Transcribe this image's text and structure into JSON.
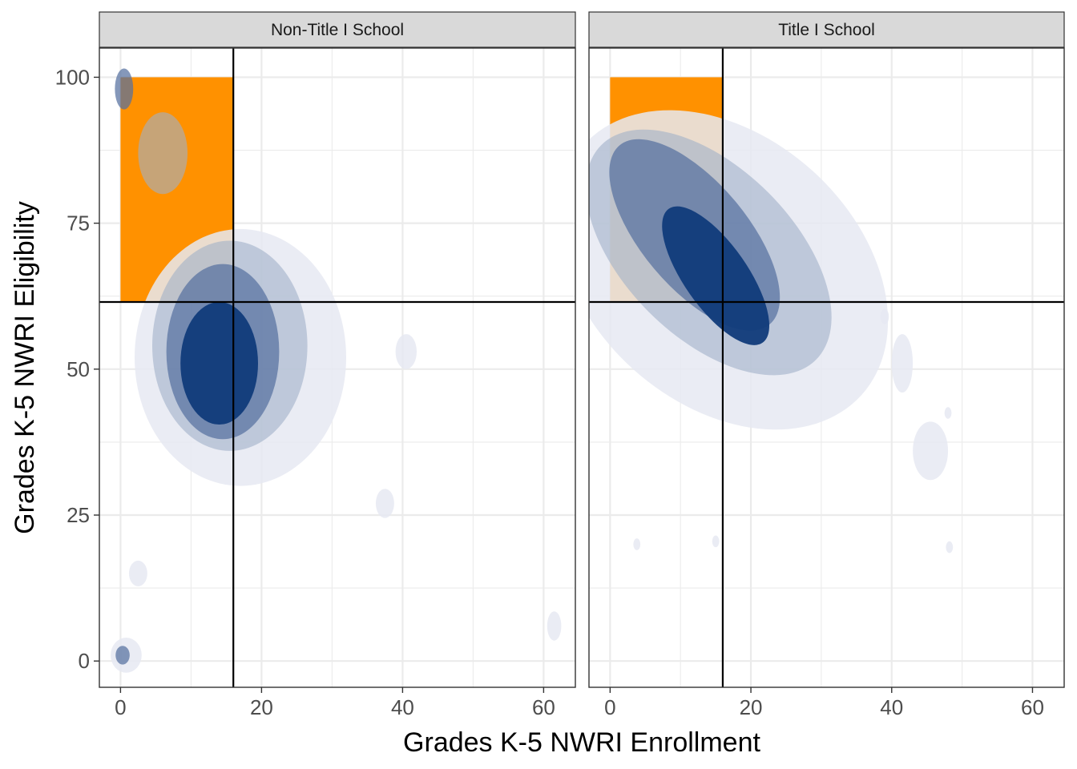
{
  "chart_data": {
    "type": "area",
    "subtype": "faceted 2D density contour",
    "xlabel": "Grades K-5 NWRI Enrollment",
    "ylabel": "Grades K-5 NWRI Eligibility",
    "xlim": [
      -3,
      64.5
    ],
    "ylim": [
      -4.5,
      105
    ],
    "x_ticks": [
      0,
      20,
      40,
      60
    ],
    "y_ticks": [
      0,
      25,
      50,
      75,
      100
    ],
    "grid": true,
    "reference_lines": {
      "x": 16,
      "y": 61.5
    },
    "highlight_region": {
      "x": [
        0,
        16
      ],
      "y": [
        61.5,
        100
      ],
      "color": "#ff9100"
    },
    "density_colors": [
      "#e6e9f2",
      "#a0b0c8",
      "#5670a0",
      "#103b7a"
    ],
    "overlap_colors": [
      "#f8a030",
      "#d98a2a",
      "#a87634",
      "#5d5753"
    ],
    "panels": [
      {
        "strip": "Non-Title I School",
        "peak": {
          "x": 15,
          "y": 52
        },
        "levels": [
          {
            "level": 1,
            "cx": 17,
            "cy": 52,
            "rx": 15,
            "ry": 22
          },
          {
            "level": 2,
            "cx": 15.5,
            "cy": 54,
            "rx": 11,
            "ry": 18
          },
          {
            "level": 3,
            "cx": 14.5,
            "cy": 53,
            "rx": 8,
            "ry": 15
          },
          {
            "level": 4,
            "cx": 14,
            "cy": 51,
            "rx": 5.5,
            "ry": 10.5
          }
        ],
        "islands": [
          {
            "level": 1,
            "cx": 2.5,
            "cy": 15,
            "rx": 1.3,
            "ry": 2.2
          },
          {
            "level": 1,
            "cx": 37.5,
            "cy": 27,
            "rx": 1.3,
            "ry": 2.5
          },
          {
            "level": 1,
            "cx": 61.5,
            "cy": 6,
            "rx": 1,
            "ry": 2.5
          },
          {
            "level": 1,
            "cx": 40.5,
            "cy": 53,
            "rx": 1.5,
            "ry": 3
          },
          {
            "level": 1,
            "cx": 0.8,
            "cy": 1,
            "rx": 2.2,
            "ry": 3
          },
          {
            "level": 3,
            "cx": 0.3,
            "cy": 1,
            "rx": 1,
            "ry": 1.6
          },
          {
            "level": 3,
            "cx": 0.5,
            "cy": 98,
            "rx": 1.3,
            "ry": 3.5
          },
          {
            "level": 2,
            "cx": 6,
            "cy": 87,
            "rx": 3.5,
            "ry": 7
          }
        ]
      },
      {
        "strip": "Title I School",
        "peak": {
          "x": 15,
          "y": 67
        },
        "levels": [
          {
            "level": 1,
            "cx": 16,
            "cy": 67,
            "rx": 19,
            "ry": 32,
            "rotate": -48
          },
          {
            "level": 2,
            "cx": 14,
            "cy": 70,
            "rx": 12,
            "ry": 26,
            "rotate": -45
          },
          {
            "level": 3,
            "cx": 12,
            "cy": 73,
            "rx": 7.5,
            "ry": 20,
            "rotate": -40
          },
          {
            "level": 4,
            "cx": 15,
            "cy": 66,
            "rx": 4.5,
            "ry": 14,
            "rotate": -35
          }
        ],
        "islands": [
          {
            "level": 1,
            "cx": 45.5,
            "cy": 36,
            "rx": 2.5,
            "ry": 5
          },
          {
            "level": 1,
            "cx": 41.5,
            "cy": 51,
            "rx": 1.5,
            "ry": 5
          },
          {
            "level": 1,
            "cx": 39,
            "cy": 59,
            "rx": 0.6,
            "ry": 1.3
          },
          {
            "level": 1,
            "cx": 48,
            "cy": 42.5,
            "rx": 0.5,
            "ry": 1
          },
          {
            "level": 1,
            "cx": 3.8,
            "cy": 20,
            "rx": 0.5,
            "ry": 1
          },
          {
            "level": 1,
            "cx": 15,
            "cy": 20.5,
            "rx": 0.5,
            "ry": 1
          },
          {
            "level": 1,
            "cx": 48.2,
            "cy": 19.5,
            "rx": 0.5,
            "ry": 1
          }
        ]
      }
    ]
  }
}
